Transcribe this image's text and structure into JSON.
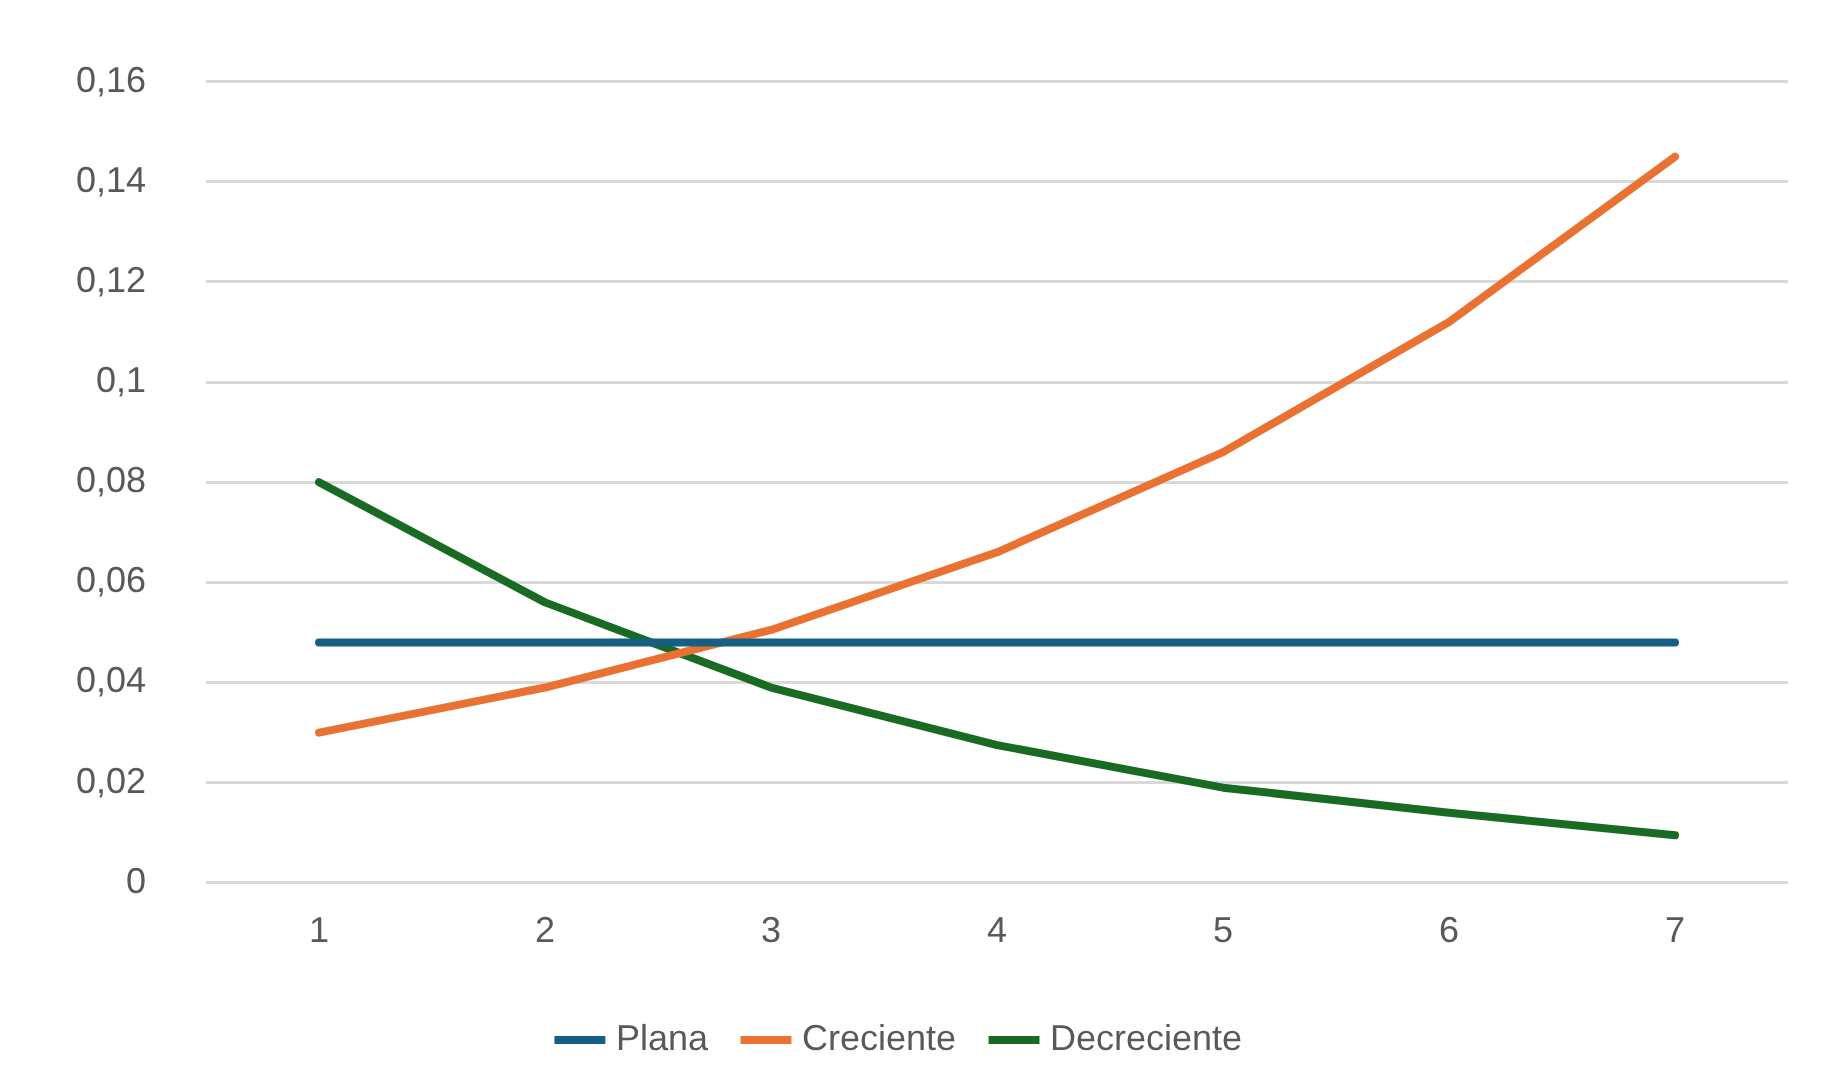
{
  "chart_data": {
    "type": "line",
    "categories": [
      "1",
      "2",
      "3",
      "4",
      "5",
      "6",
      "7"
    ],
    "series": [
      {
        "name": "Plana",
        "color": "#156082",
        "values": [
          0.048,
          0.048,
          0.048,
          0.048,
          0.048,
          0.048,
          0.048
        ]
      },
      {
        "name": "Creciente",
        "color": "#e97132",
        "values": [
          0.03,
          0.039,
          0.0505,
          0.066,
          0.086,
          0.112,
          0.145
        ]
      },
      {
        "name": "Decreciente",
        "color": "#196b24",
        "values": [
          0.08,
          0.056,
          0.039,
          0.0275,
          0.019,
          0.014,
          0.0095
        ]
      }
    ],
    "ylim": [
      0,
      0.16
    ],
    "yticks": [
      0,
      {
        "value": 0.02,
        "label": "0,02"
      },
      {
        "value": 0.04,
        "label": "0,04"
      },
      {
        "value": 0.06,
        "label": "0,06"
      },
      {
        "value": 0.08,
        "label": "0,08"
      },
      {
        "value": 0.1,
        "label": "0,1"
      },
      {
        "value": 0.12,
        "label": "0,12"
      },
      {
        "value": 0.14,
        "label": "0,14"
      },
      {
        "value": 0.16,
        "label": "0,16"
      }
    ],
    "grid": "y",
    "legend": "bottom",
    "marker": "none",
    "line_style": "solid"
  }
}
